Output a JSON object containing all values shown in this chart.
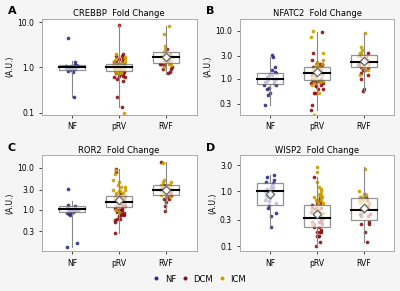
{
  "panels": [
    {
      "label": "A",
      "title": "CREBBP  Fold Change",
      "ylim": [
        0.09,
        12.0
      ],
      "yticks": [
        0.1,
        1.0,
        10.0
      ],
      "yticklabels": [
        "0.1",
        "1.0",
        "10.0"
      ],
      "groups": [
        "NF",
        "pRV",
        "RVF"
      ],
      "box_data": {
        "NF": {
          "median": 1.0,
          "q1": 0.88,
          "q3": 1.12,
          "whislo": 0.22,
          "whishi": 1.38
        },
        "pRV": {
          "median": 1.0,
          "q1": 0.82,
          "q3": 1.18,
          "whislo": 0.13,
          "whishi": 8.5
        },
        "RVF": {
          "median": 1.7,
          "q1": 1.25,
          "q3": 2.2,
          "whislo": 0.7,
          "whishi": 8.2
        }
      },
      "nf_points": [
        1.0,
        1.05,
        0.95,
        1.1,
        0.9,
        1.02,
        0.98,
        1.15,
        0.85,
        1.0,
        0.93,
        1.05,
        0.95,
        0.88,
        1.12,
        0.22,
        1.3,
        0.92,
        1.08,
        1.0,
        0.78,
        4.5,
        1.0,
        0.95,
        1.05
      ],
      "dcm_points_prv": [
        1.0,
        1.2,
        0.8,
        1.5,
        0.6,
        1.1,
        0.9,
        8.5,
        0.7,
        1.3,
        0.75,
        1.8,
        0.65,
        0.5,
        2.0,
        1.0,
        0.9,
        0.13,
        1.4,
        1.1,
        0.85,
        0.6,
        1.05,
        0.95,
        1.3,
        1.0,
        0.8,
        0.7,
        1.2,
        0.9,
        1.1,
        0.85,
        1.0,
        1.3,
        0.75,
        0.65,
        0.55,
        1.5,
        1.8,
        0.22
      ],
      "icm_points_prv": [
        1.2,
        0.9,
        1.1,
        0.85,
        1.3,
        0.75,
        1.5,
        0.95,
        1.05,
        1.0,
        1.2,
        0.85,
        1.15,
        1.25,
        0.9,
        1.4,
        1.0,
        1.7,
        2.0,
        1.5,
        0.8,
        1.0,
        0.75,
        1.1,
        0.1
      ],
      "dcm_points_rvf": [
        1.5,
        1.2,
        2.0,
        0.9,
        1.8,
        1.1,
        1.4,
        0.75,
        1.3,
        1.6,
        1.0,
        2.5,
        0.8,
        1.5,
        1.2,
        0.9
      ],
      "icm_points_rvf": [
        1.8,
        2.0,
        1.5,
        1.3,
        2.5,
        1.7,
        3.0,
        8.2,
        1.2,
        1.0,
        2.2,
        1.4,
        1.8,
        1.6,
        1.1,
        1.9,
        5.5,
        1.3
      ],
      "mean_nf": null,
      "mean_prv": null,
      "mean_rvf": 1.7
    },
    {
      "label": "B",
      "title": "NFATC2  Fold Change",
      "ylim": [
        0.18,
        18.0
      ],
      "yticks": [
        0.3,
        1.0,
        3.0,
        10.0
      ],
      "yticklabels": [
        "0.3",
        "1.0",
        "3.0",
        "10.0"
      ],
      "groups": [
        "NF",
        "pRV",
        "RVF"
      ],
      "box_data": {
        "NF": {
          "median": 1.0,
          "q1": 0.78,
          "q3": 1.35,
          "whislo": 0.28,
          "whishi": 2.8
        },
        "pRV": {
          "median": 1.3,
          "q1": 0.95,
          "q3": 1.75,
          "whislo": 0.22,
          "whishi": 9.5
        },
        "RVF": {
          "median": 2.2,
          "q1": 1.75,
          "q3": 3.1,
          "whislo": 0.55,
          "whishi": 9.0
        }
      },
      "nf_points": [
        1.0,
        1.1,
        0.9,
        1.3,
        0.75,
        0.5,
        1.5,
        0.8,
        1.2,
        2.8,
        0.28,
        1.0,
        0.85,
        1.4,
        0.65,
        3.2,
        0.9,
        1.1,
        0.75,
        1.2,
        1.0,
        0.6,
        0.45,
        1.8
      ],
      "dcm_points_prv": [
        1.3,
        0.8,
        2.0,
        0.5,
        1.5,
        0.9,
        3.5,
        0.7,
        1.8,
        1.0,
        0.22,
        9.5,
        1.2,
        0.85,
        1.6,
        0.6,
        1.3,
        2.5,
        0.9,
        1.1,
        0.75,
        1.4,
        1.0,
        0.8,
        1.9,
        1.3,
        0.7,
        0.5,
        2.0,
        1.0,
        1.5,
        0.85,
        1.2,
        0.6,
        1.8,
        0.28,
        1.0,
        1.3,
        0.9
      ],
      "icm_points_prv": [
        1.5,
        1.0,
        2.0,
        0.8,
        1.2,
        10.0,
        7.5,
        3.5,
        1.8,
        1.3,
        2.5,
        1.0,
        0.75,
        1.5,
        1.1,
        0.9,
        2.0,
        1.4,
        1.8,
        2.2,
        0.85,
        0.18,
        0.5,
        1.0,
        1.6
      ],
      "dcm_points_rvf": [
        2.0,
        1.5,
        3.0,
        1.8,
        2.5,
        1.2,
        2.8,
        0.6,
        1.9,
        2.2,
        1.5,
        3.5,
        1.0,
        2.0,
        1.7,
        1.3,
        0.55
      ],
      "icm_points_rvf": [
        2.5,
        3.0,
        1.8,
        4.0,
        9.0,
        2.2,
        1.5,
        3.5,
        2.8,
        2.0,
        1.2,
        4.5,
        3.0,
        1.8,
        2.5,
        1.5,
        2.0,
        3.5
      ],
      "mean_nf": null,
      "mean_prv": 1.4,
      "mean_rvf": 2.3
    },
    {
      "label": "C",
      "title": "ROR2  Fold Change",
      "ylim": [
        0.1,
        20.0
      ],
      "yticks": [
        0.3,
        1.0,
        3.0,
        10.0
      ],
      "yticklabels": [
        "0.3",
        "1.0",
        "3.0",
        "10.0"
      ],
      "groups": [
        "NF",
        "pRV",
        "RVF"
      ],
      "box_data": {
        "NF": {
          "median": 1.05,
          "q1": 0.88,
          "q3": 1.22,
          "whislo": 0.13,
          "whishi": 1.6
        },
        "pRV": {
          "median": 1.55,
          "q1": 1.15,
          "q3": 2.1,
          "whislo": 0.28,
          "whishi": 9.5
        },
        "RVF": {
          "median": 2.9,
          "q1": 2.2,
          "q3": 3.9,
          "whislo": 0.95,
          "whishi": 13.5
        }
      },
      "nf_points": [
        1.0,
        1.05,
        0.95,
        1.1,
        0.9,
        1.02,
        0.98,
        1.15,
        0.85,
        1.0,
        0.9,
        0.13,
        1.2,
        1.3,
        0.8,
        0.75,
        1.0,
        0.95,
        1.05,
        0.88,
        3.2,
        0.16
      ],
      "dcm_points_prv": [
        1.5,
        1.0,
        2.0,
        0.8,
        1.8,
        0.5,
        9.5,
        0.7,
        1.3,
        1.1,
        0.28,
        2.5,
        0.9,
        1.5,
        1.0,
        1.8,
        1.2,
        0.75,
        0.6,
        1.4,
        1.0,
        0.9,
        1.3,
        1.8,
        2.0,
        0.8,
        1.1,
        0.6,
        1.5,
        1.0,
        1.7,
        0.85,
        1.3,
        0.75,
        1.2,
        1.5,
        8.0,
        0.55,
        1.8
      ],
      "icm_points_prv": [
        2.0,
        1.5,
        3.0,
        1.8,
        2.5,
        4.0,
        7.0,
        9.0,
        2.0,
        5.0,
        3.5,
        1.5,
        2.8,
        2.0,
        1.8,
        3.0,
        2.5,
        1.2,
        4.5,
        1.0,
        0.9,
        2.2,
        3.5,
        2.8,
        1.5
      ],
      "dcm_points_rvf": [
        2.5,
        2.0,
        3.5,
        1.8,
        4.0,
        2.2,
        3.0,
        1.2,
        2.8,
        2.5,
        1.5,
        3.2,
        0.95,
        2.8,
        2.2,
        1.8,
        13.5
      ],
      "icm_points_rvf": [
        3.0,
        2.5,
        4.0,
        2.8,
        5.0,
        3.5,
        13.0,
        2.0,
        4.5,
        3.2,
        2.5,
        4.0,
        3.8,
        2.2,
        3.5,
        2.8,
        2.0,
        4.5
      ],
      "mean_nf": null,
      "mean_prv": 1.7,
      "mean_rvf": 3.0
    },
    {
      "label": "D",
      "title": "WISP2  Fold Change",
      "ylim": [
        0.08,
        4.5
      ],
      "yticks": [
        0.1,
        0.3,
        1.0,
        3.0
      ],
      "yticklabels": [
        "0.1",
        "0.3",
        "1.0",
        "3.0"
      ],
      "groups": [
        "NF",
        "pRV",
        "RVF"
      ],
      "box_data": {
        "NF": {
          "median": 1.0,
          "q1": 0.55,
          "q3": 1.4,
          "whislo": 0.22,
          "whishi": 2.0
        },
        "pRV": {
          "median": 0.32,
          "q1": 0.22,
          "q3": 0.55,
          "whislo": 0.1,
          "whishi": 1.8
        },
        "RVF": {
          "median": 0.45,
          "q1": 0.3,
          "q3": 0.75,
          "whislo": 0.12,
          "whishi": 2.8
        }
      },
      "nf_points": [
        1.0,
        1.2,
        0.8,
        1.5,
        0.5,
        0.7,
        1.3,
        2.0,
        0.6,
        0.9,
        1.1,
        0.22,
        0.35,
        1.8,
        1.0,
        0.75,
        0.85,
        1.2,
        0.65,
        1.4,
        0.55,
        0.4,
        1.6,
        1.1,
        0.9
      ],
      "dcm_points_prv": [
        0.32,
        0.25,
        0.5,
        0.18,
        0.6,
        0.15,
        0.8,
        0.28,
        0.4,
        0.12,
        1.8,
        0.35,
        0.55,
        0.1,
        0.45,
        0.38,
        0.22,
        0.7,
        0.18,
        0.3,
        0.42,
        0.25,
        0.5,
        0.32,
        0.15,
        0.28,
        0.6,
        0.38,
        0.2,
        0.35,
        0.48,
        0.22,
        0.38,
        0.15,
        0.28,
        0.42,
        0.18,
        0.35,
        0.5
      ],
      "icm_points_prv": [
        0.5,
        0.35,
        0.8,
        0.25,
        0.6,
        2.8,
        2.2,
        0.7,
        0.9,
        0.4,
        1.0,
        0.6,
        0.8,
        0.7,
        0.9,
        0.4,
        1.2,
        0.8,
        0.6,
        1.1,
        0.45,
        0.7,
        0.85,
        0.4,
        1.5
      ],
      "dcm_points_rvf": [
        0.45,
        0.35,
        0.6,
        0.25,
        0.8,
        0.18,
        0.55,
        0.38,
        0.7,
        0.28,
        0.12,
        0.5,
        0.42,
        0.35,
        0.55,
        0.25,
        0.38
      ],
      "icm_points_rvf": [
        0.6,
        0.8,
        0.5,
        1.0,
        2.5,
        0.7,
        0.45,
        0.9,
        0.75,
        0.55,
        0.85,
        0.65,
        0.75,
        0.5,
        0.8,
        0.6,
        0.7,
        0.9
      ],
      "mean_nf": 0.9,
      "mean_prv": 0.38,
      "mean_rvf": 0.5
    }
  ],
  "colors": {
    "NF": "#2e2e8b",
    "DCM": "#8b1010",
    "ICM": "#c8a000"
  },
  "box_facecolor": "white",
  "box_edge": "#666666",
  "whisker_color": "#888888",
  "background": "#f5f5f5",
  "panel_bg": "white",
  "ylabel": "(A.U.)",
  "legend_markers": [
    "circle",
    "circle",
    "circle"
  ]
}
